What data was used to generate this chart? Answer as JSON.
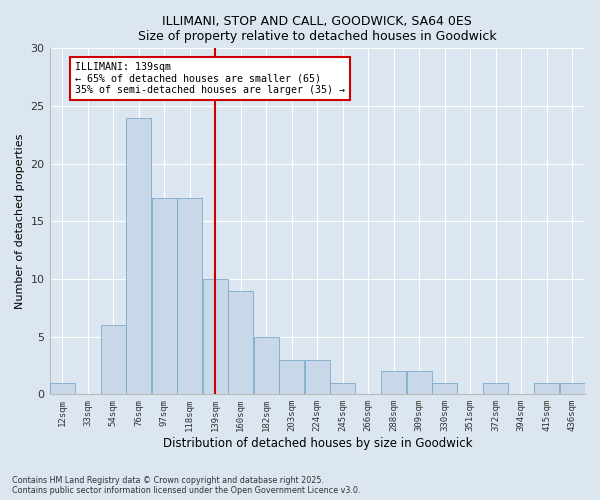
{
  "title1": "ILLIMANI, STOP AND CALL, GOODWICK, SA64 0ES",
  "title2": "Size of property relative to detached houses in Goodwick",
  "xlabel": "Distribution of detached houses by size in Goodwick",
  "ylabel": "Number of detached properties",
  "categories": [
    "12sqm",
    "33sqm",
    "54sqm",
    "76sqm",
    "97sqm",
    "118sqm",
    "139sqm",
    "160sqm",
    "182sqm",
    "203sqm",
    "224sqm",
    "245sqm",
    "266sqm",
    "288sqm",
    "309sqm",
    "330sqm",
    "351sqm",
    "372sqm",
    "394sqm",
    "415sqm",
    "436sqm"
  ],
  "values": [
    1,
    0,
    6,
    24,
    17,
    17,
    10,
    9,
    5,
    3,
    3,
    1,
    0,
    2,
    2,
    1,
    0,
    1,
    0,
    1,
    1
  ],
  "bar_color": "#c8d8e8",
  "bar_edge_color": "#7aaac8",
  "vline_x_index": 6,
  "vline_color": "#cc0000",
  "annotation_line1": "ILLIMANI: 139sqm",
  "annotation_line2": "← 65% of detached houses are smaller (65)",
  "annotation_line3": "35% of semi-detached houses are larger (35) →",
  "annotation_box_color": "#ffffff",
  "annotation_box_edge": "#cc0000",
  "ylim": [
    0,
    30
  ],
  "yticks": [
    0,
    5,
    10,
    15,
    20,
    25,
    30
  ],
  "footnote1": "Contains HM Land Registry data © Crown copyright and database right 2025.",
  "footnote2": "Contains public sector information licensed under the Open Government Licence v3.0.",
  "bg_color": "#dce6f0"
}
